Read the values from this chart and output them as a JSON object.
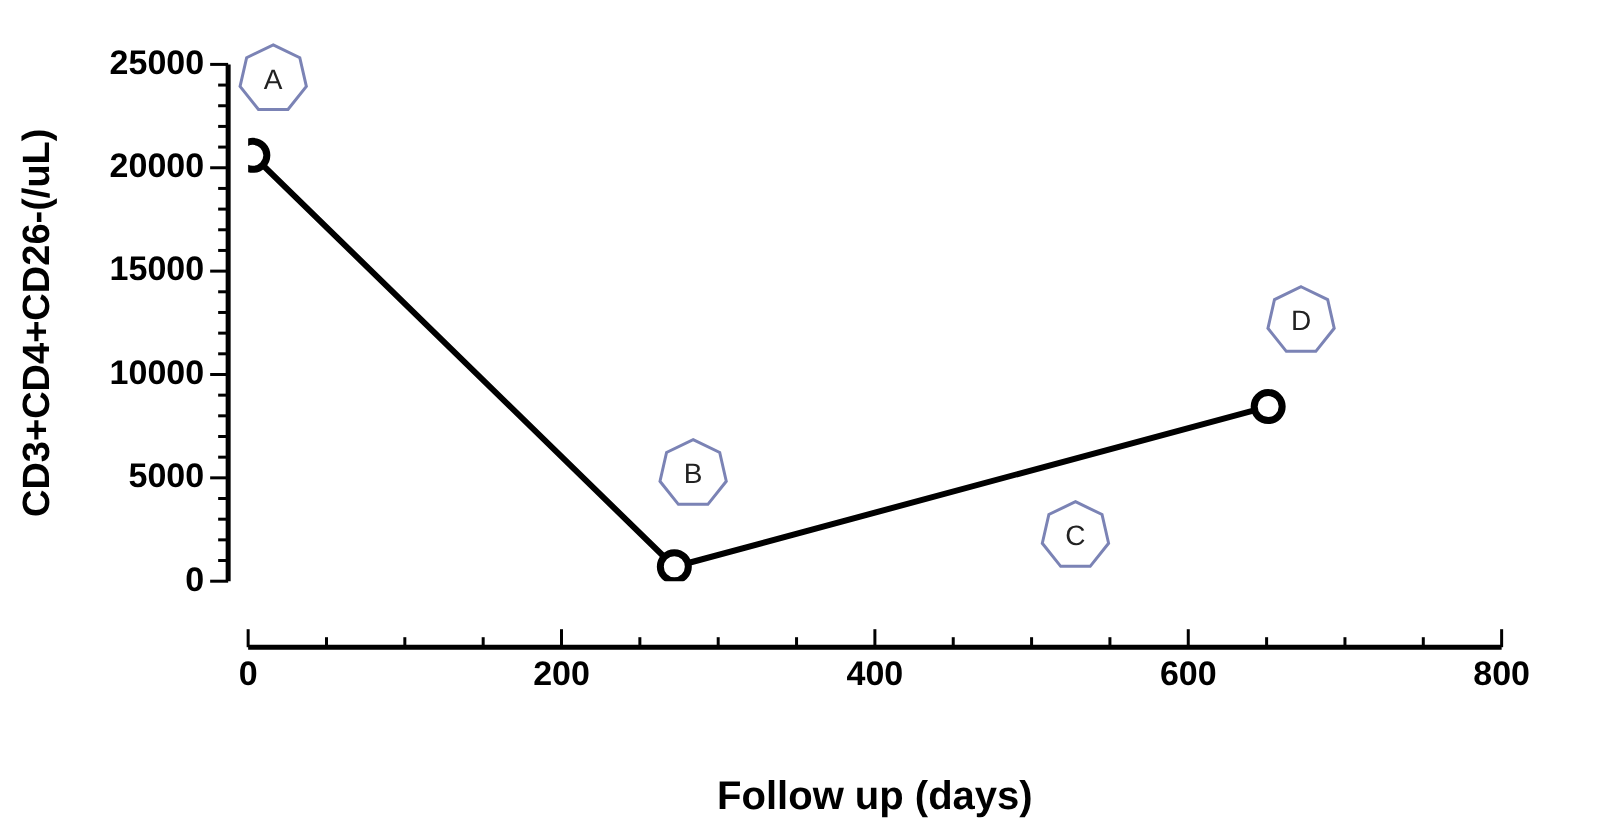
{
  "chart_data": {
    "type": "line",
    "xlabel": "Follow up (days)",
    "ylabel": "CD3+CD4+CD26-(/uL)",
    "x": [
      3,
      272,
      651
    ],
    "series": [
      {
        "color": "#000000",
        "values": [
          20600,
          700,
          8450
        ]
      }
    ],
    "xlim": [
      0,
      800
    ],
    "xticks": [
      0,
      200,
      400,
      600,
      800
    ],
    "ylim": [
      0,
      25000
    ],
    "yticks": [
      0,
      5000,
      10000,
      15000,
      20000,
      25000
    ],
    "grid": false,
    "legend": false,
    "marker": "circle",
    "line_style": "solid",
    "annotations": [
      {
        "text": "A",
        "x": 16,
        "y": 24300
      },
      {
        "text": "B",
        "x": 284,
        "y": 5200
      },
      {
        "text": "C",
        "x": 528,
        "y": 2200
      },
      {
        "text": "D",
        "x": 672,
        "y": 12600
      }
    ]
  }
}
